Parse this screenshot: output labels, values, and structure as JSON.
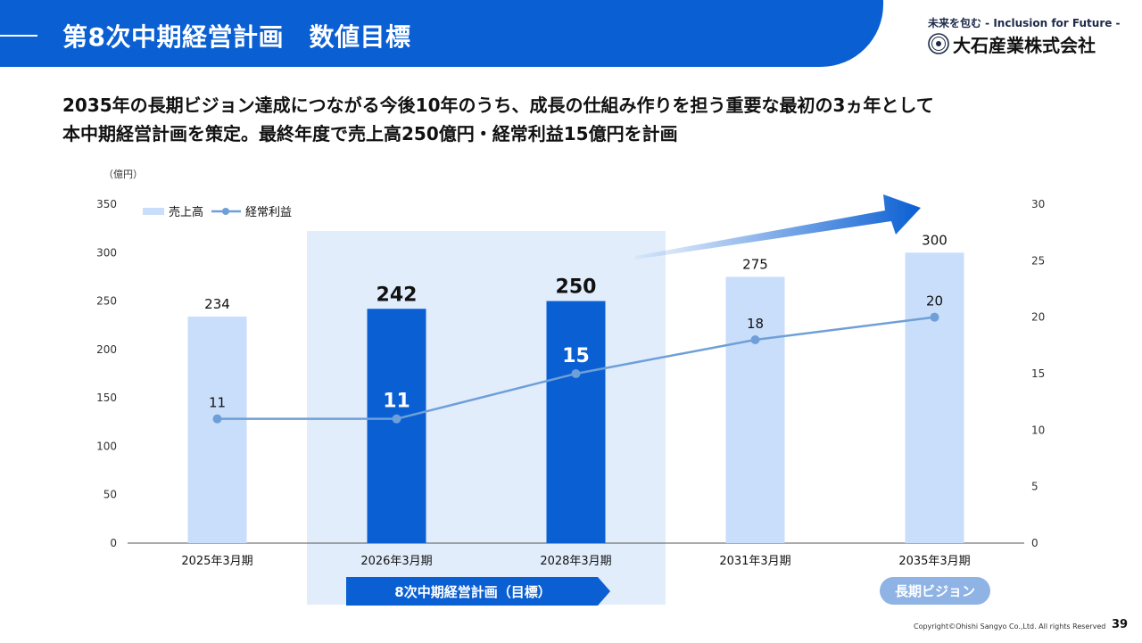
{
  "header": {
    "title": "第8次中期経営計画　数値目標"
  },
  "logo": {
    "tagline": "未来を包む - Inclusion for Future -",
    "company_name": "大石産業株式会社"
  },
  "lead": {
    "line1": "2035年の長期ビジョン達成につながる今後10年のうち、成長の仕組み作りを担う重要な最初の3ヵ年として",
    "line2": "本中期経営計画を策定。最終年度で売上高250億円・経常利益15億円を計画"
  },
  "chart_data": {
    "type": "bar",
    "unit_label": "（億円）",
    "categories": [
      "2025年3月期",
      "2026年3月期",
      "2028年3月期",
      "2031年3月期",
      "2035年3月期"
    ],
    "series": [
      {
        "name": "売上高",
        "type": "bar",
        "axis": "left",
        "values": [
          234,
          242,
          250,
          275,
          300
        ]
      },
      {
        "name": "経常利益",
        "type": "line",
        "axis": "right",
        "values": [
          11,
          11,
          15,
          18,
          20
        ]
      }
    ],
    "highlighted_categories": [
      1,
      2
    ],
    "ylim_left": [
      0,
      350
    ],
    "yticks_left": [
      "0",
      "50",
      "100",
      "150",
      "200",
      "250",
      "300",
      "350"
    ],
    "ylim_right": [
      0,
      30
    ],
    "yticks_right": [
      "0",
      "5",
      "10",
      "15",
      "20",
      "25",
      "30"
    ],
    "legend_position": "top-left",
    "grid": false,
    "annotations": {
      "plan_label": "8次中期経営計画（目標）",
      "vision_label": "長期ビジョン"
    },
    "colors": {
      "bar_light": "#c9defa",
      "bar_dark": "#0a5fd3",
      "line": "#6f9fd8",
      "plan_region": "#e2edfc",
      "plan_label_bg": "#0a5fd3",
      "vision_label_bg": "#8fb3e4"
    }
  },
  "footer": {
    "copyright": "Copyright©Ohishi Sangyo Co.,Ltd. All rights Reserved",
    "page": "39"
  }
}
